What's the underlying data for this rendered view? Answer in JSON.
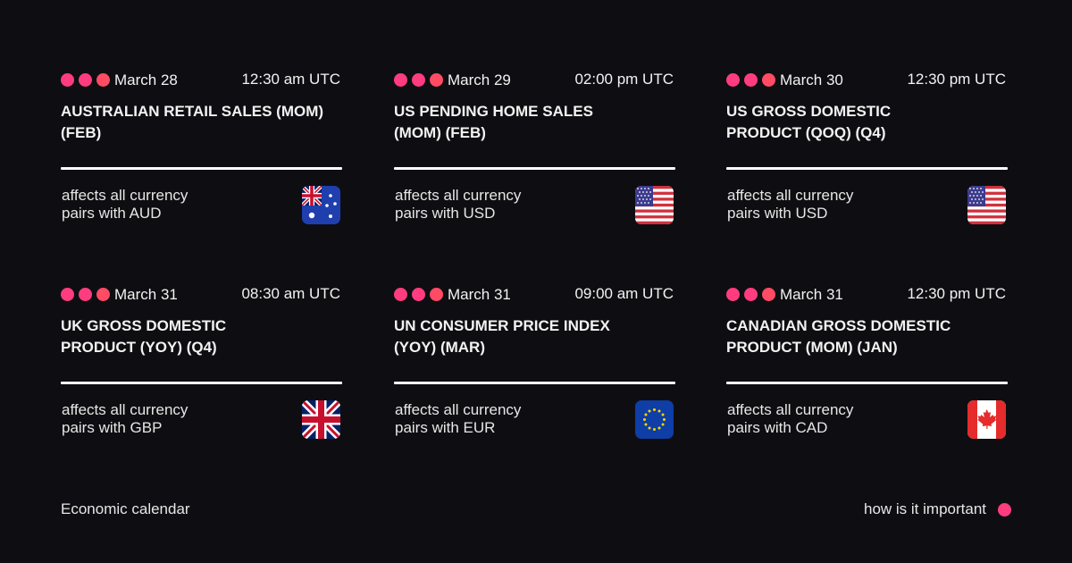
{
  "events": [
    {
      "date": "March 28",
      "time": "12:30 am UTC",
      "title": [
        "AUSTRALIAN RETAIL SALES (MOM)",
        "(FEB)"
      ],
      "affects": [
        "affects all currency",
        "pairs with AUD"
      ]
    },
    {
      "date": "March 29",
      "time": "02:00 pm UTC",
      "title": [
        "US PENDING HOME SALES",
        "(MOM) (FEB)"
      ],
      "affects": [
        "affects all currency",
        "pairs with USD"
      ]
    },
    {
      "date": "March 30",
      "time": "12:30 pm UTC",
      "title": [
        "US GROSS DOMESTIC",
        "PRODUCT (QOQ) (Q4)"
      ],
      "affects": [
        "affects all currency",
        "pairs with USD"
      ]
    },
    {
      "date": "March 31",
      "time": "08:30 am UTC",
      "title": [
        "UK GROSS DOMESTIC",
        "PRODUCT (YOY) (Q4)"
      ],
      "affects": [
        "affects all currency",
        "pairs with GBP"
      ]
    },
    {
      "date": "March 31",
      "time": "09:00 am UTC",
      "title": [
        "UN CONSUMER PRICE INDEX",
        "(YOY) (MAR)"
      ],
      "affects": [
        "affects all currency",
        "pairs with EUR"
      ]
    },
    {
      "date": "March 31",
      "time": "12:30 pm UTC",
      "title": [
        "CANADIAN GROSS DOMESTIC",
        "PRODUCT (MOM) (JAN)"
      ],
      "affects": [
        "affects all currency",
        "pairs with CAD"
      ]
    }
  ],
  "footer": {
    "title": "Economic calendar",
    "legend": "how is it important"
  }
}
